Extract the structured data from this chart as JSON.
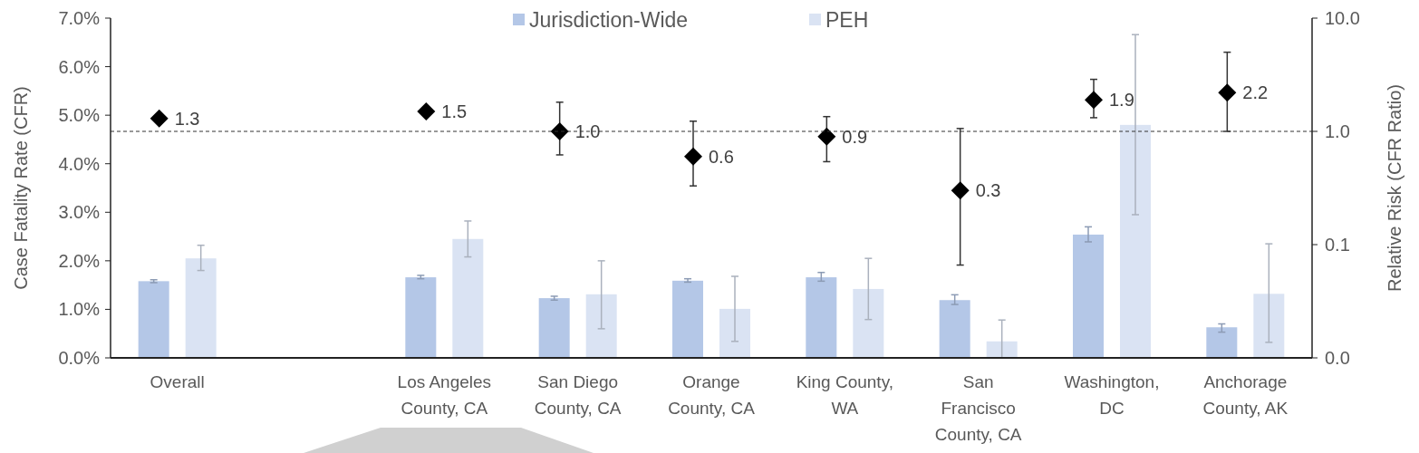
{
  "chart_data": {
    "type": "bar",
    "ylabel": "Case Fatality Rate (CFR)",
    "y2label": "Relative Risk (CFR Ratio)",
    "categories": [
      "Overall",
      null,
      "Los Angeles County, CA",
      "San Diego County, CA",
      "Orange County, CA",
      "King County, WA",
      "San Francisco County, CA",
      "Washington, DC",
      "Anchorage County, AK"
    ],
    "series": [
      {
        "name": "Jurisdiction-Wide",
        "color": "#b4c7e7",
        "values": [
          1.58,
          null,
          1.66,
          1.23,
          1.59,
          1.66,
          1.19,
          2.54,
          0.63
        ],
        "errors": [
          [
            1.55,
            1.61
          ],
          null,
          [
            1.63,
            1.7
          ],
          [
            1.19,
            1.27
          ],
          [
            1.56,
            1.63
          ],
          [
            1.58,
            1.76
          ],
          [
            1.1,
            1.3
          ],
          [
            2.39,
            2.7
          ],
          [
            0.53,
            0.7
          ]
        ]
      },
      {
        "name": "PEH",
        "color": "#dae3f3",
        "values": [
          2.05,
          null,
          2.45,
          1.31,
          1.01,
          1.42,
          0.34,
          4.8,
          1.32
        ],
        "errors": [
          [
            1.8,
            2.32
          ],
          null,
          [
            2.08,
            2.82
          ],
          [
            0.6,
            2.0
          ],
          [
            0.34,
            1.68
          ],
          [
            0.79,
            2.05
          ],
          [
            0.0,
            0.78
          ],
          [
            2.95,
            6.66
          ],
          [
            0.32,
            2.35
          ]
        ]
      },
      {
        "type": "scatter",
        "axis": "y2",
        "color": "#000000",
        "marker": "diamond",
        "values": [
          1.3,
          null,
          1.5,
          1.0,
          0.6,
          0.9,
          0.3,
          1.9,
          2.2
        ],
        "value_labels": [
          "1.3",
          null,
          "1.5",
          "1.0",
          "0.6",
          "0.9",
          "0.3",
          "1.9",
          "2.2"
        ],
        "errors": [
          null,
          null,
          null,
          [
            0.62,
            1.81
          ],
          [
            0.33,
            1.23
          ],
          [
            0.54,
            1.35
          ],
          [
            0.066,
            1.06
          ],
          [
            1.32,
            2.88
          ],
          [
            1.0,
            5.0
          ]
        ]
      }
    ],
    "ylim": [
      0,
      7
    ],
    "yticks": [
      {
        "value": 0,
        "label": "0.0%"
      },
      {
        "value": 1,
        "label": "1.0%"
      },
      {
        "value": 2,
        "label": "2.0%"
      },
      {
        "value": 3,
        "label": "3.0%"
      },
      {
        "value": 4,
        "label": "4.0%"
      },
      {
        "value": 5,
        "label": "5.0%"
      },
      {
        "value": 6,
        "label": "6.0%"
      },
      {
        "value": 7,
        "label": "7.0%"
      }
    ],
    "y2lim": [
      0.01,
      10
    ],
    "y2ticks": [
      {
        "value": 0.01,
        "label": "0.0"
      },
      {
        "value": 0.1,
        "label": "0.1"
      },
      {
        "value": 1,
        "label": "1.0"
      },
      {
        "value": 10,
        "label": "10.0"
      }
    ],
    "log": "y2",
    "ref_lines": [
      {
        "axis": "y2",
        "value": 1,
        "line_style": "dashed",
        "color": "#333333"
      }
    ],
    "grid": false,
    "legend": "top"
  }
}
